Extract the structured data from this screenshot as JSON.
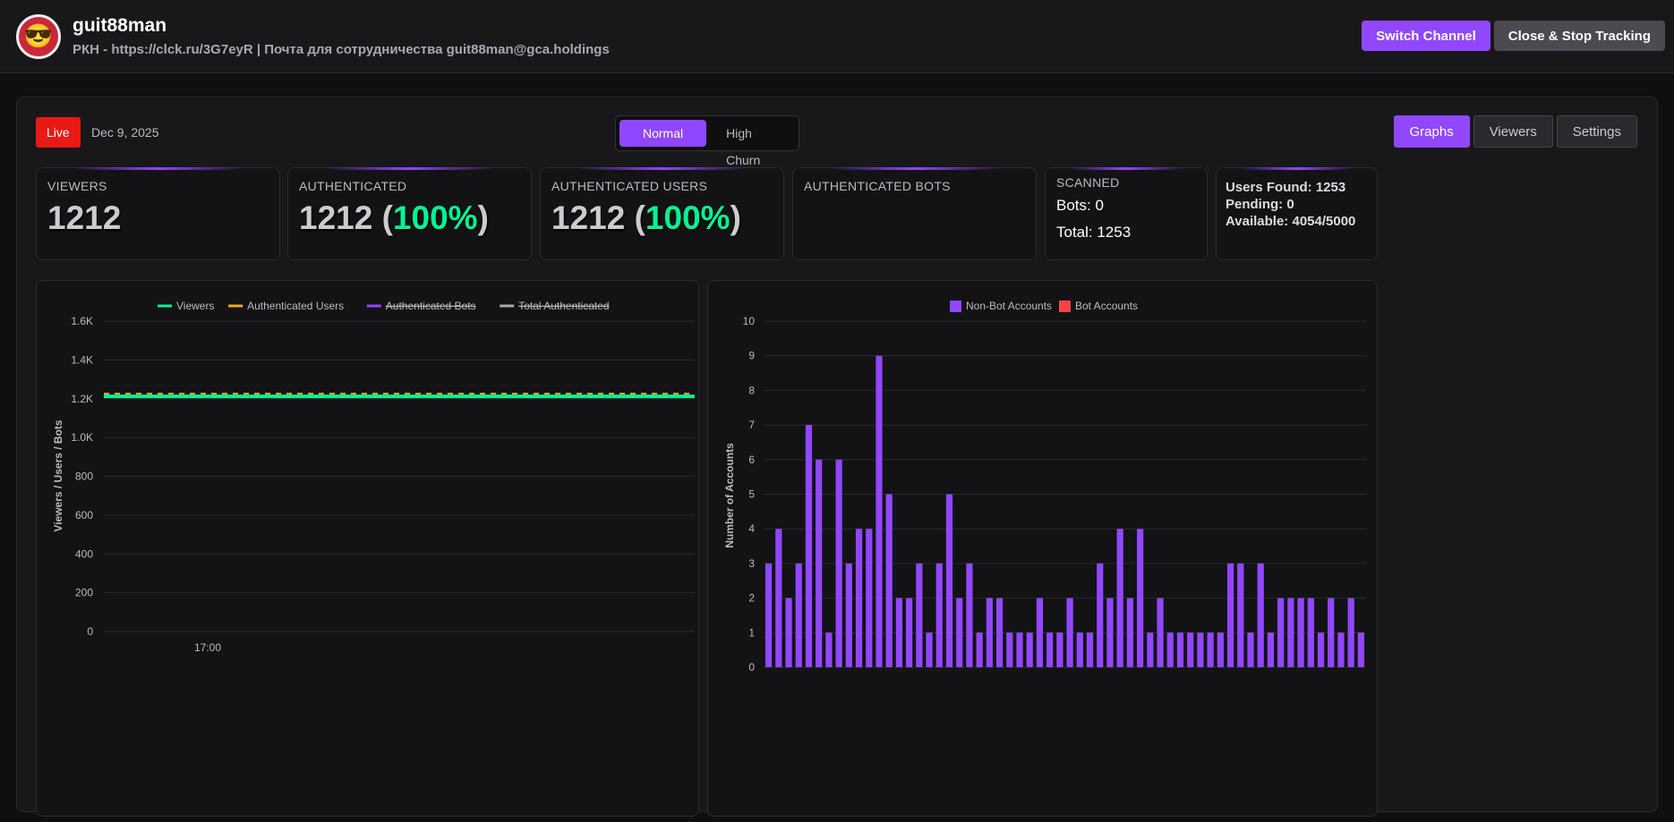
{
  "header": {
    "channel": "guit88man",
    "subtitle": "РКН - https://clck.ru/3G7eyR | Почта для сотрудничества guit88man@gca.holdings",
    "switch_label": "Switch Channel",
    "close_label": "Close & Stop Tracking"
  },
  "toolbar": {
    "live": "Live",
    "date": "Dec 9, 2025",
    "modes": [
      "Normal",
      "High Churn"
    ],
    "active_mode": "Normal",
    "tabs": [
      "Graphs",
      "Viewers",
      "Settings"
    ],
    "active_tab": "Graphs"
  },
  "stats": {
    "viewers": {
      "label": "VIEWERS",
      "value": "1212"
    },
    "authenticated": {
      "label": "AUTHENTICATED",
      "value": "1212",
      "pct": "100%"
    },
    "auth_users": {
      "label": "AUTHENTICATED USERS",
      "value": "1212",
      "pct": "100%"
    },
    "auth_bots": {
      "label": "AUTHENTICATED BOTS"
    },
    "scanned": {
      "label": "SCANNED",
      "bots": "Bots: 0",
      "total": "Total: 1253"
    },
    "found": {
      "users_found": "Users Found: 1253",
      "pending": "Pending: 0",
      "available": "Available: 4054/5000"
    }
  },
  "colors": {
    "accent": "#9147ff",
    "live": "#e91916",
    "viewers": "#00f593",
    "auth_users": "#f5a623",
    "auth_bots": "#9147ff",
    "total_auth": "#aaaaaa",
    "bots": "#ff4444"
  },
  "chart_data": [
    {
      "type": "line",
      "ylabel": "Viewers / Users / Bots",
      "ylim": [
        0,
        1600
      ],
      "yticks": [
        "0",
        "200",
        "400",
        "600",
        "800",
        "1.0K",
        "1.2K",
        "1.4K",
        "1.6K"
      ],
      "xticks": [
        "17:00"
      ],
      "grid": true,
      "legend": "top",
      "series": [
        {
          "name": "Viewers",
          "values": [
            1212,
            1212
          ],
          "hidden": false
        },
        {
          "name": "Authenticated Users",
          "values": [
            1212,
            1212
          ],
          "hidden": false
        },
        {
          "name": "Authenticated Bots",
          "hidden": true
        },
        {
          "name": "Total Authenticated",
          "hidden": true
        }
      ]
    },
    {
      "type": "bar",
      "ylabel": "Number of Accounts",
      "ylim": [
        0,
        10
      ],
      "grid": true,
      "legend": "top",
      "series": [
        {
          "name": "Non-Bot Accounts",
          "values": [
            3,
            4,
            2,
            3,
            7,
            6,
            1,
            6,
            3,
            4,
            4,
            9,
            5,
            2,
            2,
            3,
            1,
            3,
            5,
            2,
            3,
            1,
            2,
            2,
            1,
            1,
            1,
            2,
            1,
            1,
            2,
            1,
            1,
            3,
            2,
            4,
            2,
            4,
            1,
            2,
            1,
            1,
            1,
            1,
            1,
            1,
            3,
            3,
            1,
            3,
            1,
            2,
            2,
            2,
            2,
            1,
            2,
            1,
            2,
            1
          ]
        },
        {
          "name": "Bot Accounts",
          "values": []
        }
      ]
    }
  ]
}
